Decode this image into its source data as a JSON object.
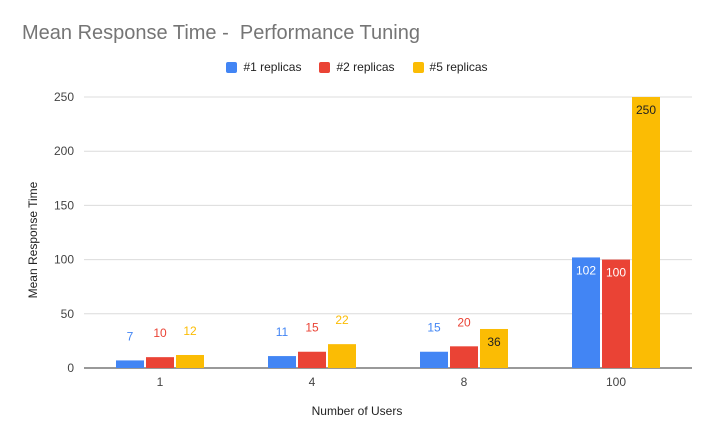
{
  "chart_data": {
    "type": "bar",
    "title": "Mean Response Time -  Performance Tuning",
    "xlabel": "Number of Users",
    "ylabel": "Mean Response Time",
    "categories": [
      "1",
      "4",
      "8",
      "100"
    ],
    "series": [
      {
        "name": "#1 replicas",
        "color": "#4285f4",
        "values": [
          7,
          11,
          15,
          102
        ]
      },
      {
        "name": "#2 replicas",
        "color": "#ea4335",
        "values": [
          10,
          15,
          20,
          100
        ]
      },
      {
        "name": "#5 replicas",
        "color": "#fbbc04",
        "values": [
          12,
          22,
          36,
          250
        ]
      }
    ],
    "ylim": [
      0,
      250
    ],
    "yticks": [
      "0",
      "50",
      "100",
      "150",
      "200",
      "250"
    ],
    "grid": true,
    "legend_position": "top"
  }
}
